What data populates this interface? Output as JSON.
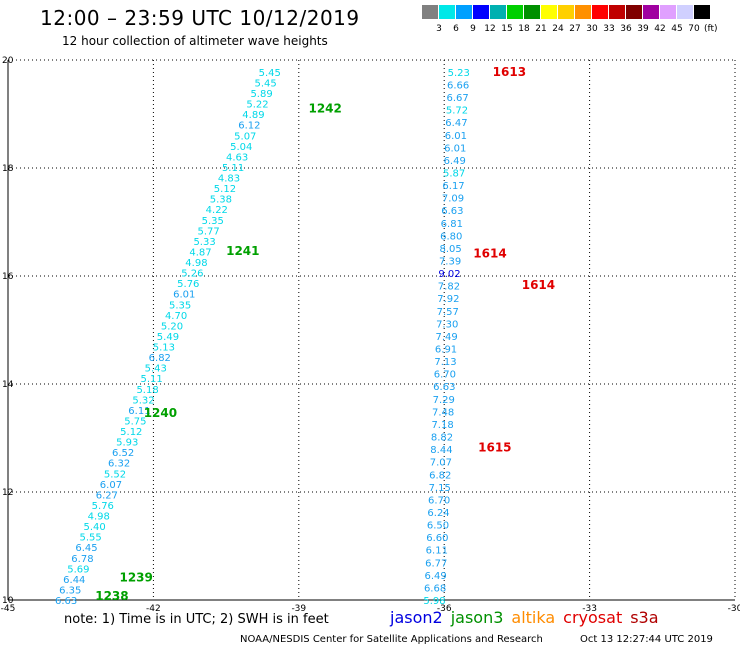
{
  "header": {
    "title": "12:00 – 23:59 UTC 10/12/2019",
    "subtitle": "12 hour collection of altimeter wave heights"
  },
  "colorbar": {
    "colors": [
      "#808080",
      "#00e8e8",
      "#00a0ff",
      "#0000ff",
      "#00b0b0",
      "#00d000",
      "#009000",
      "#ffff00",
      "#ffd000",
      "#ff9000",
      "#ff0000",
      "#c00000",
      "#800000",
      "#a000a0",
      "#e0a0ff",
      "#d0d0ff",
      "#000000"
    ],
    "labels": [
      "3",
      "6",
      "9",
      "12",
      "15",
      "18",
      "21",
      "24",
      "27",
      "30",
      "33",
      "36",
      "39",
      "42",
      "45",
      "70"
    ],
    "unit": "(ft)"
  },
  "chart_data": {
    "type": "scatter",
    "title": "12:00 – 23:59 UTC 10/12/2019",
    "xlabel": "",
    "ylabel": "",
    "xlim": [
      -45,
      -30
    ],
    "ylim": [
      10,
      20
    ],
    "xticks": [
      "-45",
      "-42",
      "-39",
      "-36",
      "-33",
      "-30"
    ],
    "yticks": [
      "10",
      "12",
      "14",
      "16",
      "18",
      "20"
    ],
    "grid": true,
    "series": [
      {
        "name": "jason3",
        "pass_color": "#00a000",
        "start": [
          -43.8,
          10.0
        ],
        "end": [
          -39.6,
          19.78
        ],
        "values": [
          "6.63",
          "6.35",
          "6.44",
          "5.69",
          "6.78",
          "6.45",
          "5.55",
          "5.40",
          "4.98",
          "5.76",
          "6.27",
          "6.07",
          "5.52",
          "6.32",
          "6.52",
          "5.93",
          "5.12",
          "5.75",
          "6.11",
          "5.32",
          "5.18",
          "5.11",
          "5.43",
          "6.82",
          "5.13",
          "5.49",
          "5.20",
          "4.70",
          "5.35",
          "6.01",
          "5.76",
          "5.26",
          "4.98",
          "4.87",
          "5.33",
          "5.77",
          "5.35",
          "4.22",
          "5.38",
          "5.12",
          "4.83",
          "5.11",
          "4.63",
          "5.04",
          "5.07",
          "6.12",
          "4.89",
          "5.22",
          "5.89",
          "5.45",
          "5.45"
        ],
        "pass_labels": [
          {
            "text": "1238",
            "x": -43.2,
            "y": 10.07
          },
          {
            "text": "1239",
            "x": -42.7,
            "y": 10.42
          },
          {
            "text": "1240",
            "x": -42.2,
            "y": 13.46
          },
          {
            "text": "1241",
            "x": -40.5,
            "y": 16.46
          },
          {
            "text": "1242",
            "x": -38.8,
            "y": 19.1
          }
        ]
      },
      {
        "name": "cryosat",
        "pass_color": "#e00000",
        "start": [
          -36.2,
          10.0
        ],
        "end": [
          -35.7,
          19.78
        ],
        "values": [
          "5.98",
          "6.68",
          "6.49",
          "6.77",
          "6.11",
          "6.60",
          "6.50",
          "6.24",
          "6.70",
          "7.15",
          "6.82",
          "7.07",
          "8.44",
          "8.82",
          "7.18",
          "7.48",
          "7.29",
          "6.63",
          "6.70",
          "7.13",
          "6.91",
          "7.49",
          "7.30",
          "7.57",
          "7.92",
          "7.82",
          "9.02",
          "7.39",
          "8.05",
          "6.80",
          "6.81",
          "6.63",
          "7.09",
          "6.17",
          "5.87",
          "6.49",
          "6.01",
          "6.01",
          "6.47",
          "5.72",
          "6.67",
          "6.66",
          "5.23"
        ],
        "pass_labels": [
          {
            "text": "1615",
            "x": -35.3,
            "y": 12.82
          },
          {
            "text": "1614",
            "x": -34.4,
            "y": 15.83
          },
          {
            "text": "1614",
            "x": -35.4,
            "y": 16.42
          },
          {
            "text": "1613",
            "x": -35.0,
            "y": 19.78
          }
        ]
      }
    ]
  },
  "footer": {
    "note": "note: 1) Time is in UTC; 2) SWH is in feet",
    "legend": [
      {
        "name": "jason2",
        "color": "#0000e0"
      },
      {
        "name": "jason3",
        "color": "#009000"
      },
      {
        "name": "altika",
        "color": "#ff8c00"
      },
      {
        "name": "cryosat",
        "color": "#e00000"
      },
      {
        "name": "s3a",
        "color": "#b00000"
      }
    ],
    "credit": "NOAA/NESDIS Center for Satellite Applications and Research",
    "timestamp": "Oct 13 12:27:44 UTC 2019"
  }
}
